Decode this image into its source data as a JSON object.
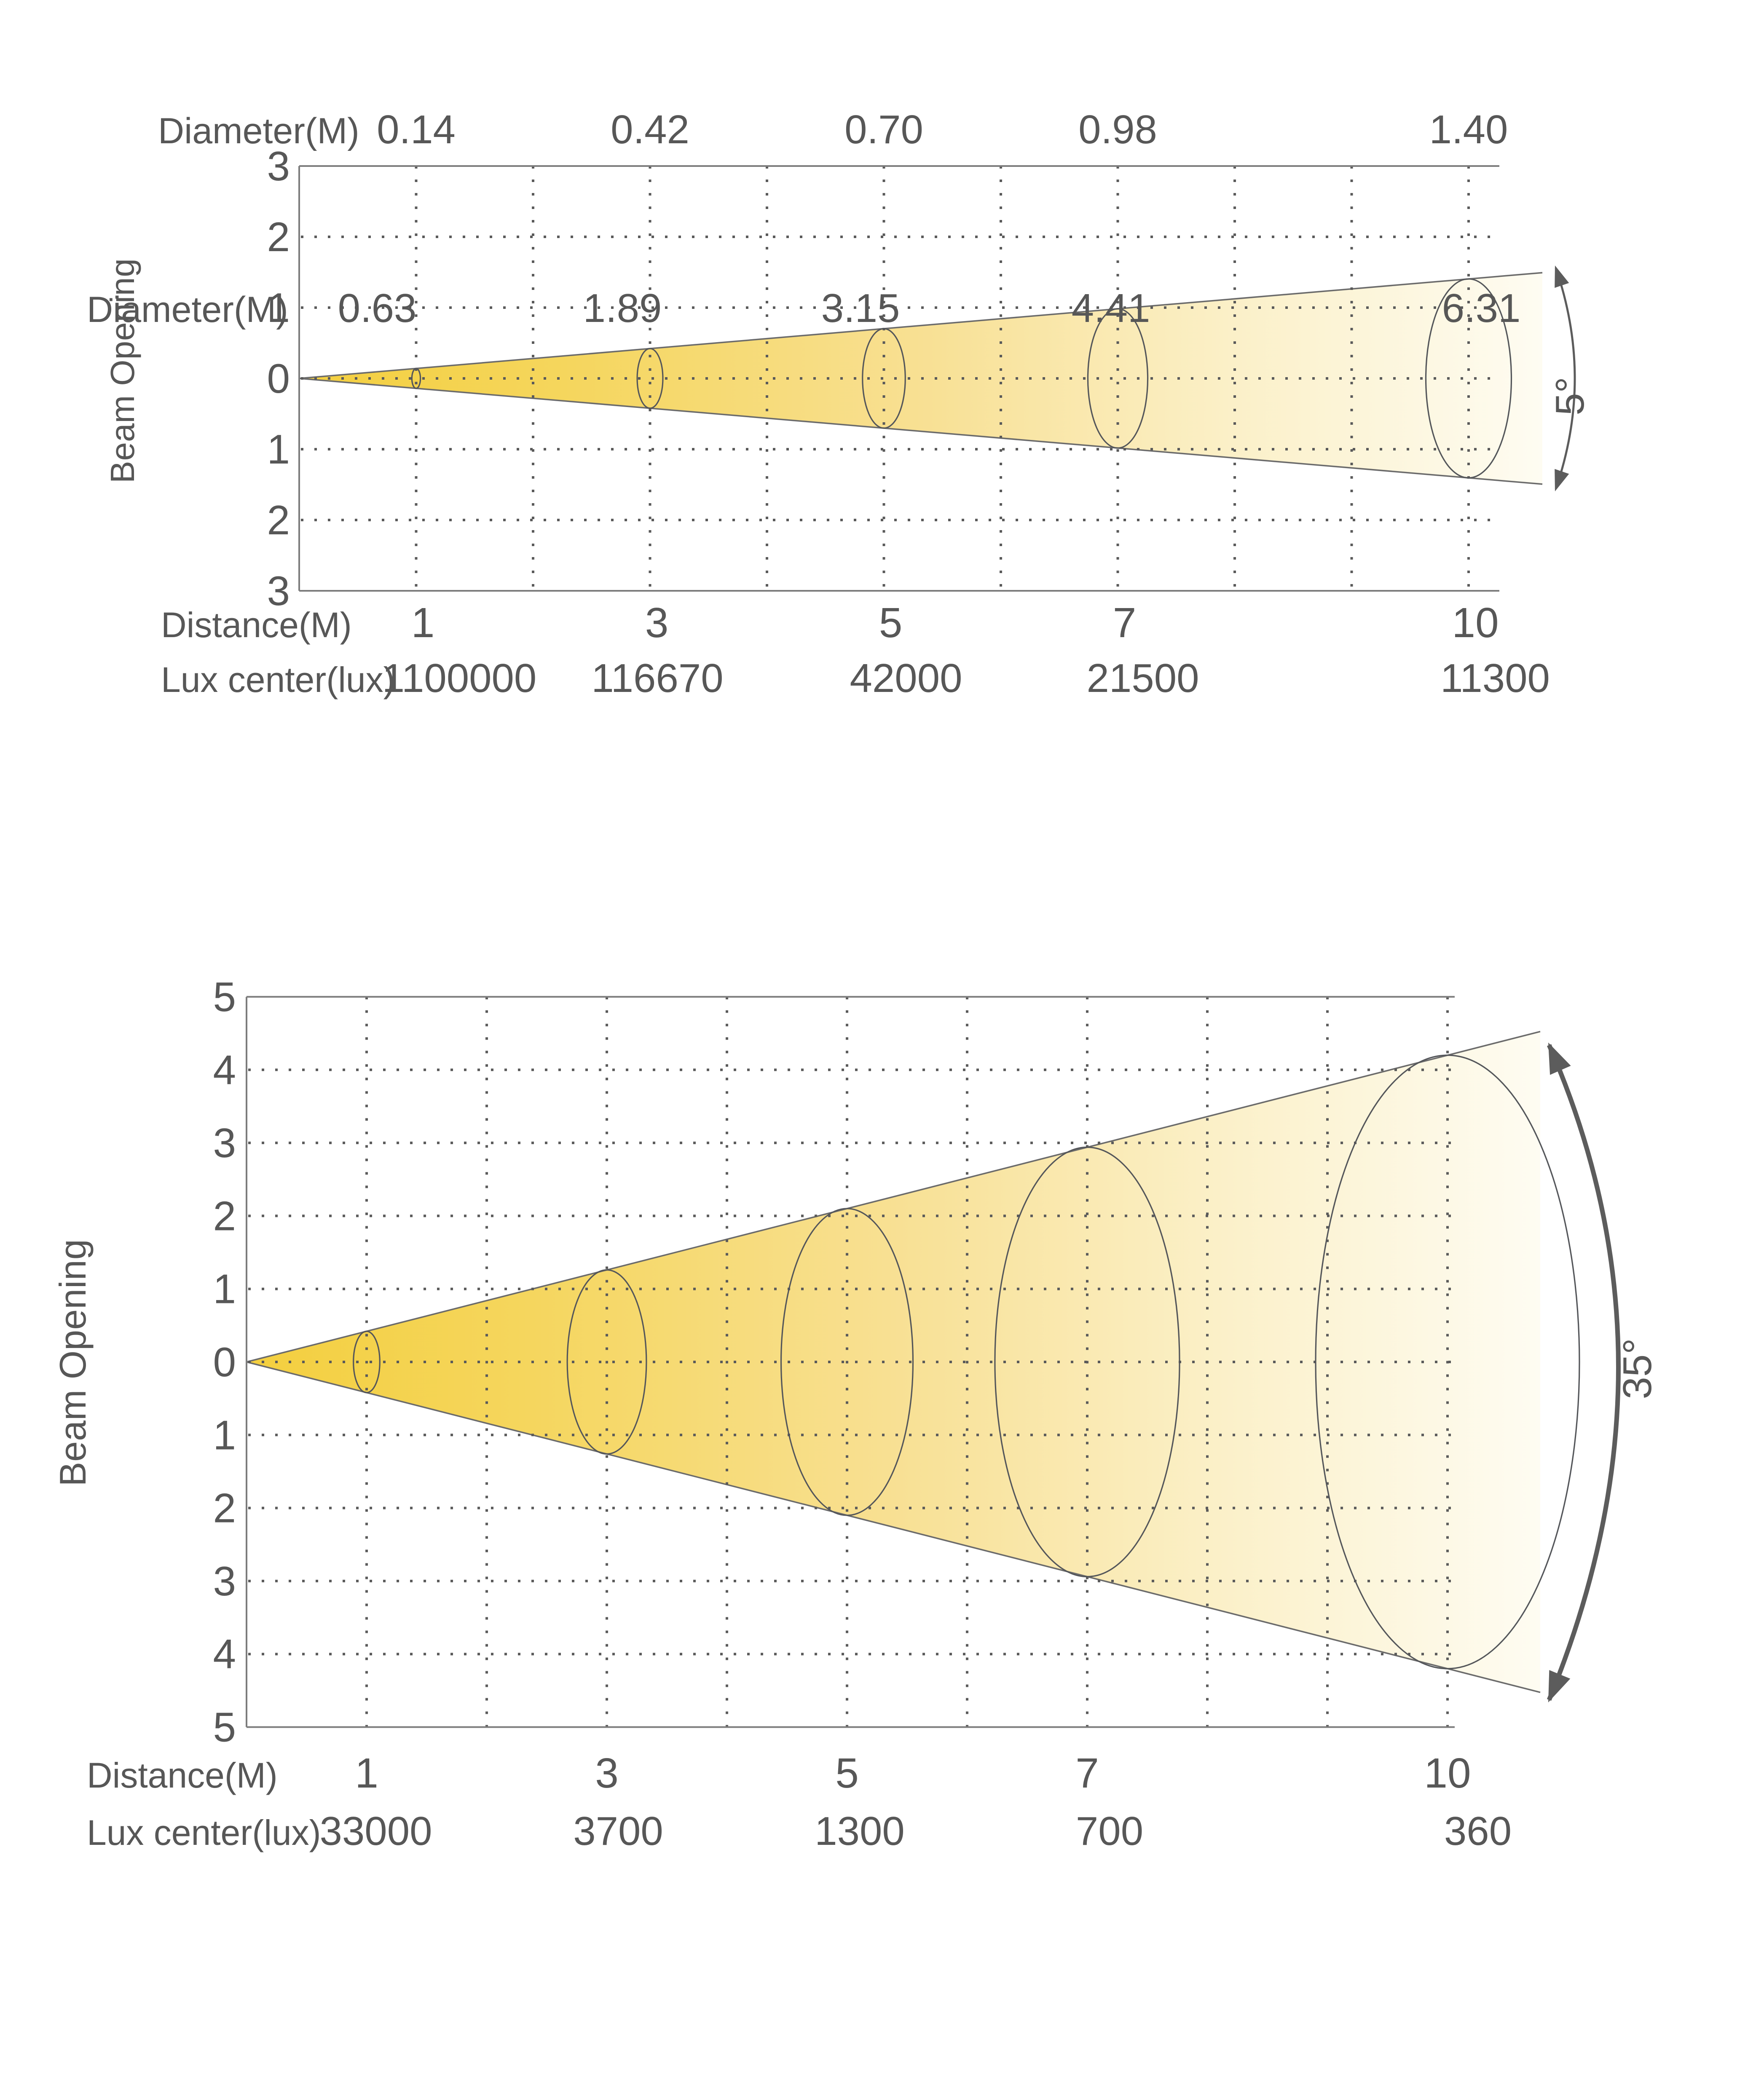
{
  "page": {
    "background": "#ffffff"
  },
  "colors": {
    "text": "#575757",
    "axis_border": "#7c7c7c",
    "grid_dot": "#5a5a5a",
    "cone_edge": "#6b6b6b",
    "ellipse_stroke": "#54565a",
    "arrow": "#5c5c5c",
    "beam_gradient": [
      "#F4CF3E",
      "#F5D65E",
      "#F8E093",
      "#FBF0C8",
      "#FEFCF2"
    ]
  },
  "chart_data": [
    {
      "type": "area",
      "name": "beam-cone-5-degree",
      "header_label": "Diameter(M)",
      "diameters": [
        "0.14",
        "0.42",
        "0.70",
        "0.98",
        "1.40"
      ],
      "ylabel": "Beam Opening",
      "y_ticks": [
        "3",
        "2",
        "1",
        "0",
        "1",
        "2",
        "3"
      ],
      "y_range": [
        -3,
        3
      ],
      "x_range": [
        0,
        10.3
      ],
      "x": [
        1,
        3,
        5,
        7,
        10
      ],
      "distance_label": "Distance(M)",
      "distances": [
        "1",
        "3",
        "5",
        "7",
        "10"
      ],
      "lux_label": "Lux center(lux)",
      "lux_values": [
        "1100000",
        "116670",
        "42000",
        "21500",
        "11300"
      ],
      "beam_angle": "5°",
      "beam_angle_deg": 5,
      "drawn_half_height_per_m": 0.1405,
      "grid": "dotted",
      "legend_position": "none"
    },
    {
      "type": "area",
      "name": "beam-cone-35-degree",
      "header_label": "Diameter(M)",
      "diameters": [
        "0.63",
        "1.89",
        "3.15",
        "4.41",
        "6.31"
      ],
      "ylabel": "Beam Opening",
      "y_ticks": [
        "5",
        "4",
        "3",
        "2",
        "1",
        "0",
        "1",
        "2",
        "3",
        "4",
        "5"
      ],
      "y_range": [
        -5,
        5
      ],
      "x_range": [
        0,
        10.06
      ],
      "x": [
        1,
        3,
        5,
        7,
        10
      ],
      "distance_label": "Distance(M)",
      "distances": [
        "1",
        "3",
        "5",
        "7",
        "10"
      ],
      "lux_label": "Lux center(lux)",
      "lux_values": [
        "33000",
        "3700",
        "1300",
        "700",
        "360"
      ],
      "beam_angle": "35°",
      "beam_angle_deg": 35,
      "drawn_half_height_per_m": 0.42,
      "grid": "dotted",
      "legend_position": "none"
    }
  ]
}
